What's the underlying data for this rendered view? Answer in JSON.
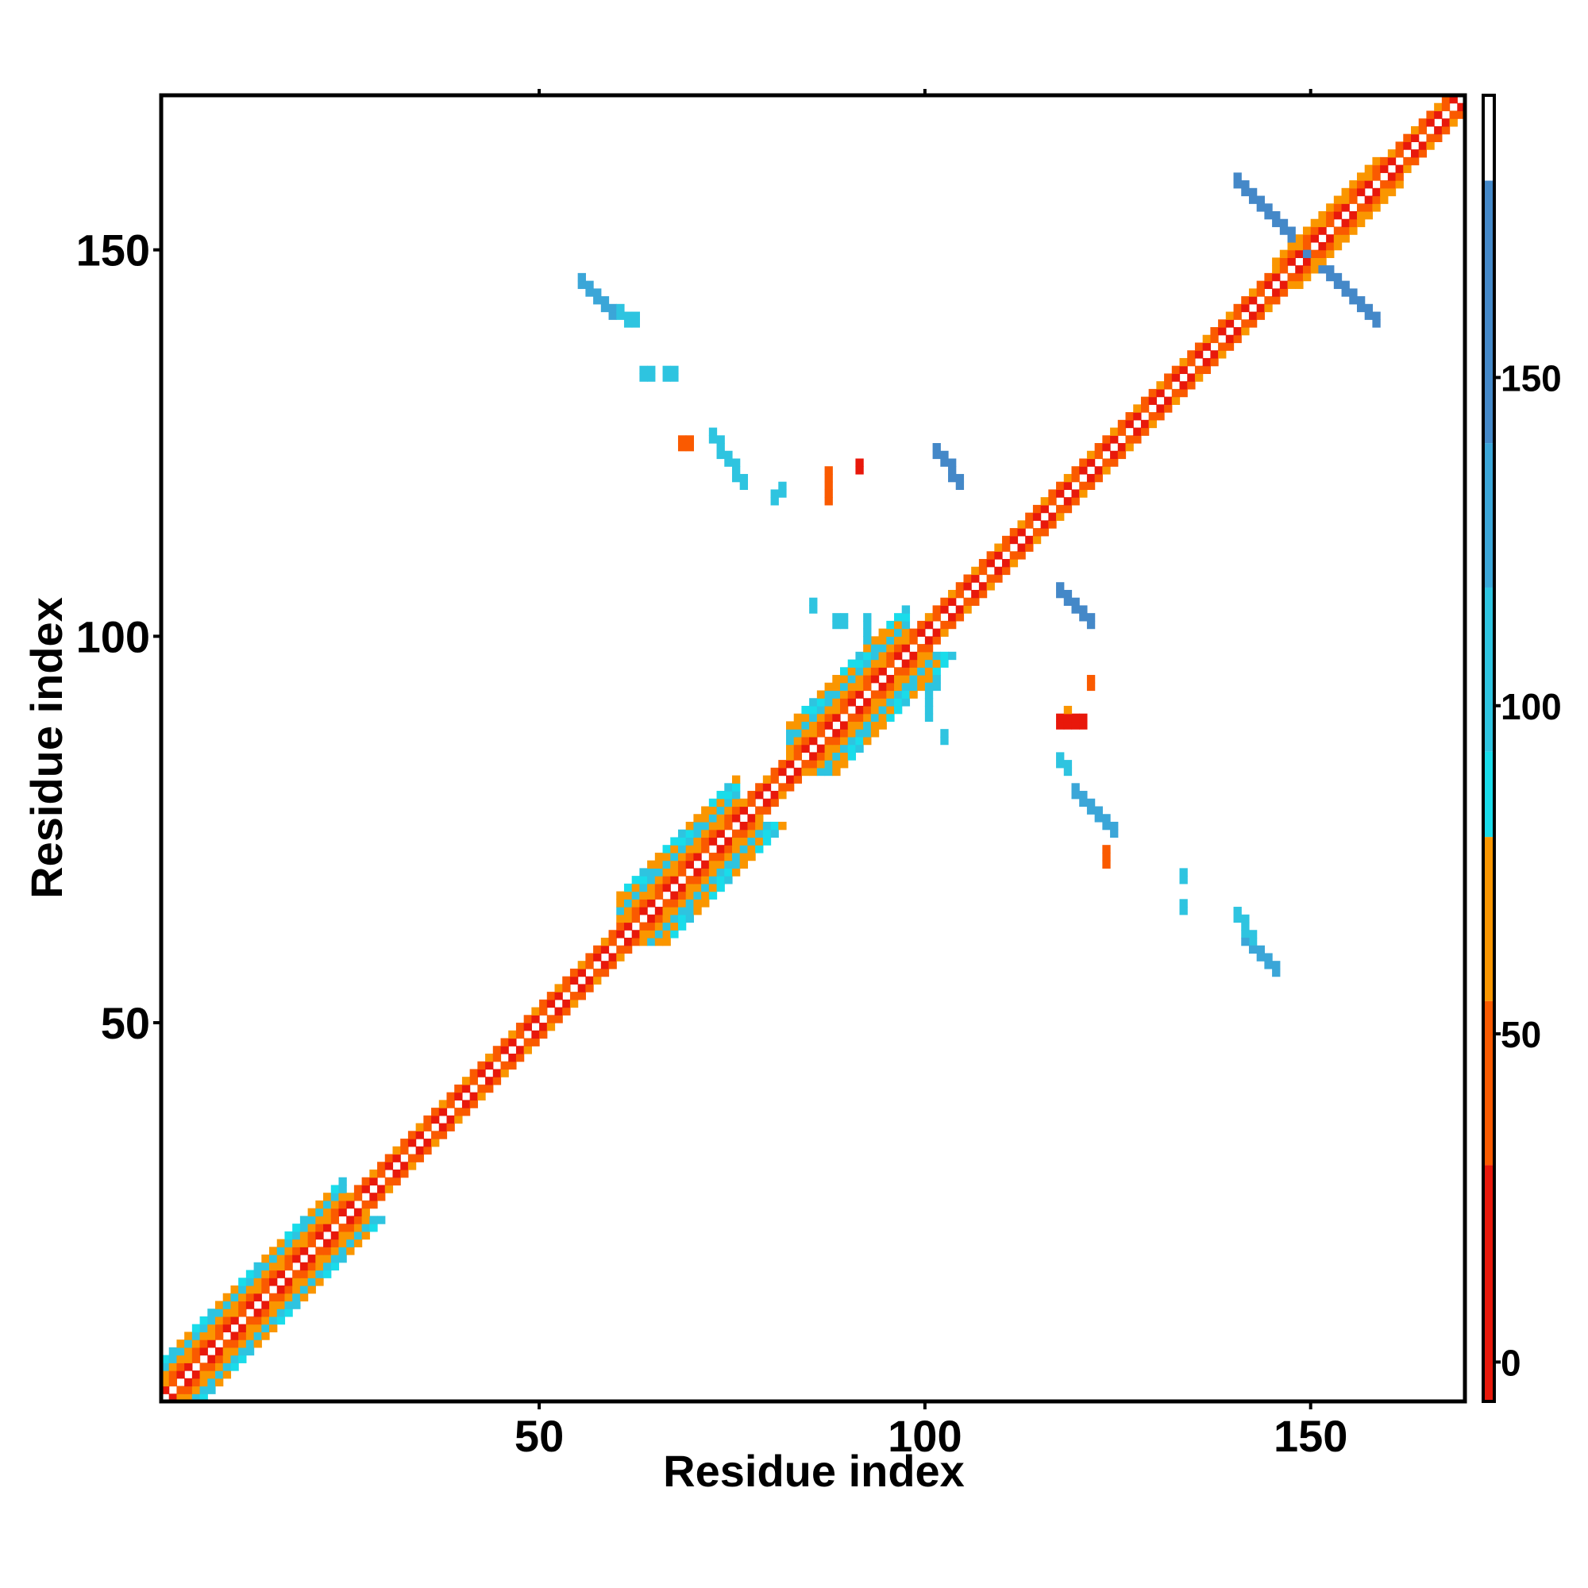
{
  "chart_data": {
    "type": "heatmap",
    "title": "",
    "xlabel": "Residue index",
    "ylabel": "Residue index",
    "xlim": [
      1,
      169
    ],
    "ylim": [
      1,
      169
    ],
    "xticks": [
      50,
      100,
      150
    ],
    "yticks": [
      50,
      100,
      150
    ],
    "grid": false,
    "colorbar": {
      "placement": "right",
      "ticks": [
        0,
        50,
        100,
        150
      ],
      "range": [
        -6,
        193
      ],
      "levels": [
        {
          "from": -6,
          "to": 30,
          "color": "#e8180b"
        },
        {
          "from": 30,
          "to": 55,
          "color": "#fa5a00"
        },
        {
          "from": 55,
          "to": 80,
          "color": "#fa9600"
        },
        {
          "from": 80,
          "to": 93,
          "color": "#19dcea"
        },
        {
          "from": 93,
          "to": 118,
          "color": "#2ec4e0"
        },
        {
          "from": 118,
          "to": 140,
          "color": "#3ba6d8"
        },
        {
          "from": 140,
          "to": 180,
          "color": "#4488c8"
        },
        {
          "from": 180,
          "to": 193,
          "color": "#ffffff"
        }
      ]
    },
    "diagonal_band": {
      "description_values": "value near 0 on diagonal, increasing with |i-j|",
      "bands": [
        {
          "offset": 1,
          "value": 20
        },
        {
          "offset": 2,
          "value": 45
        },
        {
          "offset": 3,
          "value": 70
        },
        {
          "offset": 4,
          "value": 100
        }
      ],
      "wide_segments": [
        {
          "from": 1,
          "to": 24,
          "width": 5
        },
        {
          "from": 60,
          "to": 75,
          "width": 6
        },
        {
          "from": 82,
          "to": 97,
          "width": 6
        },
        {
          "from": 145,
          "to": 158,
          "width": 3
        }
      ]
    },
    "contacts": [
      {
        "i1": 55,
        "j1": 145,
        "i2": 59,
        "j2": 141,
        "value": 130
      },
      {
        "i1": 59,
        "j1": 141,
        "i2": 62,
        "j2": 140,
        "value": 95
      },
      {
        "i1": 63,
        "j1": 133,
        "i2": 64,
        "j2": 133,
        "value": 95
      },
      {
        "i1": 66,
        "j1": 133,
        "i2": 67,
        "j2": 133,
        "value": 95
      },
      {
        "i1": 68,
        "j1": 124,
        "i2": 69,
        "j2": 124,
        "value": 45
      },
      {
        "i1": 72,
        "j1": 125,
        "i2": 76,
        "j2": 119,
        "value": 105
      },
      {
        "i1": 80,
        "j1": 117,
        "i2": 81,
        "j2": 118,
        "value": 95
      },
      {
        "i1": 87,
        "j1": 120,
        "i2": 87,
        "j2": 117,
        "value": 40
      },
      {
        "i1": 91,
        "j1": 121,
        "i2": 91,
        "j2": 121,
        "value": 20
      },
      {
        "i1": 101,
        "j1": 123,
        "i2": 104,
        "j2": 119,
        "value": 150
      },
      {
        "i1": 85,
        "j1": 103,
        "i2": 85,
        "j2": 103,
        "value": 95
      },
      {
        "i1": 88,
        "j1": 101,
        "i2": 89,
        "j2": 101,
        "value": 95
      },
      {
        "i1": 92,
        "j1": 101,
        "i2": 92,
        "j2": 97,
        "value": 95
      },
      {
        "i1": 98,
        "j1": 93,
        "i2": 101,
        "j2": 93,
        "value": 95
      },
      {
        "i1": 100,
        "j1": 91,
        "i2": 100,
        "j2": 89,
        "value": 95
      },
      {
        "i1": 102,
        "j1": 86,
        "i2": 102,
        "j2": 86,
        "value": 95
      },
      {
        "i1": 117,
        "j1": 105,
        "i2": 121,
        "j2": 101,
        "value": 150
      },
      {
        "i1": 121,
        "j1": 93,
        "i2": 121,
        "j2": 93,
        "value": 40
      },
      {
        "i1": 117,
        "j1": 88,
        "i2": 120,
        "j2": 88,
        "value": 25
      },
      {
        "i1": 118,
        "j1": 89,
        "i2": 118,
        "j2": 89,
        "value": 60
      },
      {
        "i1": 117,
        "j1": 83,
        "i2": 118,
        "j2": 82,
        "value": 95
      },
      {
        "i1": 119,
        "j1": 79,
        "i2": 124,
        "j2": 74,
        "value": 120
      },
      {
        "i1": 123,
        "j1": 71,
        "i2": 123,
        "j2": 70,
        "value": 40
      },
      {
        "i1": 133,
        "j1": 68,
        "i2": 133,
        "j2": 68,
        "value": 95
      },
      {
        "i1": 133,
        "j1": 64,
        "i2": 133,
        "j2": 64,
        "value": 95
      },
      {
        "i1": 140,
        "j1": 63,
        "i2": 142,
        "j2": 60,
        "value": 95
      },
      {
        "i1": 141,
        "j1": 60,
        "i2": 145,
        "j2": 56,
        "value": 130
      },
      {
        "i1": 140,
        "j1": 158,
        "i2": 149,
        "j2": 149,
        "value": 150
      },
      {
        "i1": 149,
        "j1": 149,
        "i2": 158,
        "j2": 140,
        "value": 140
      }
    ]
  }
}
